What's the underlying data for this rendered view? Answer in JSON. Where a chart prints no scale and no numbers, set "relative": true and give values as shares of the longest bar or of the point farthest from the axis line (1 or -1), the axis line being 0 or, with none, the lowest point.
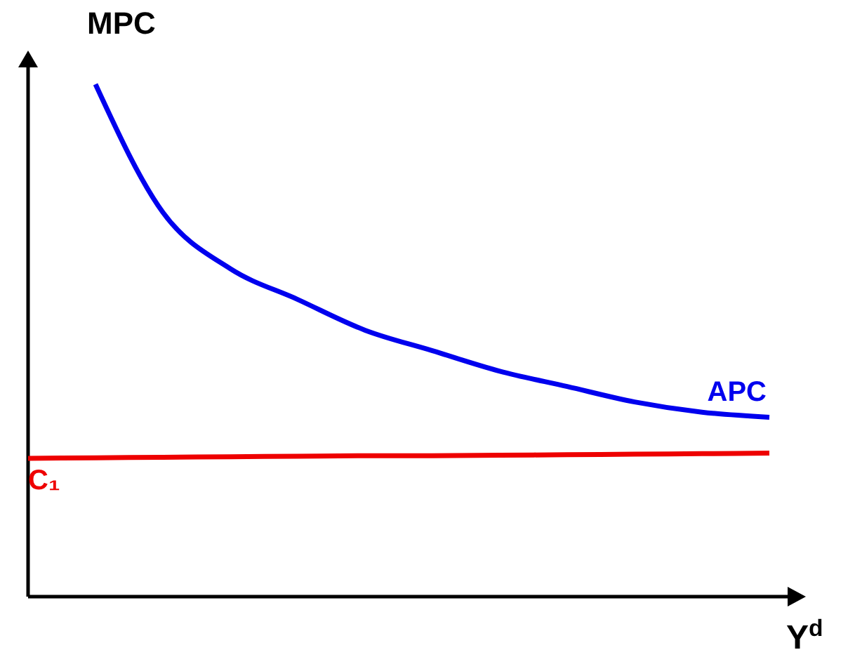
{
  "chart_data": {
    "type": "line",
    "relative": true,
    "ylabel": "MPC",
    "xlabel": "Y$^{d}$",
    "marker": "none",
    "line_style": "solid",
    "categories": [
      null,
      null,
      null,
      null,
      null,
      null,
      null,
      null,
      null,
      null,
      null,
      null
    ],
    "series": [
      {
        "name": "APC",
        "color": "#0000ee",
        "values": [
          null,
          1,
          0.75,
          0.64,
          0.58,
          0.52,
          0.48,
          0.44,
          0.41,
          0.38,
          0.36,
          0.35
        ]
      },
      {
        "name": "C₁",
        "color": "#ee0000",
        "values": [
          0.27,
          0.271,
          0.272,
          0.273,
          0.274,
          0.275,
          0.275,
          0.276,
          0.277,
          0.278,
          0.279,
          0.28
        ]
      }
    ]
  }
}
